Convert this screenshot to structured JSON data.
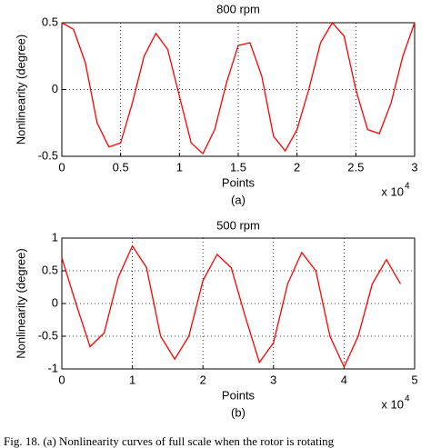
{
  "chart_data": [
    {
      "type": "line",
      "title": "800 rpm",
      "xlabel": "Points",
      "ylabel": "Nonlinearity (degree)",
      "sublabel": "(a)",
      "x_multiplier": {
        "base": "x 10",
        "exponent": "4"
      },
      "x": [
        0,
        0.1,
        0.2,
        0.3,
        0.4,
        0.5,
        0.6,
        0.7,
        0.8,
        0.9,
        1.0,
        1.1,
        1.2,
        1.3,
        1.4,
        1.5,
        1.6,
        1.7,
        1.8,
        1.9,
        2.0,
        2.1,
        2.2,
        2.3,
        2.4,
        2.5,
        2.6,
        2.7,
        2.8,
        2.9,
        3.0
      ],
      "series": [
        {
          "name": "800 rpm",
          "color": "#ff0000",
          "values": [
            0.5,
            0.45,
            0.2,
            -0.25,
            -0.43,
            -0.4,
            -0.1,
            0.25,
            0.42,
            0.3,
            -0.05,
            -0.4,
            -0.48,
            -0.3,
            0.05,
            0.33,
            0.35,
            0.1,
            -0.35,
            -0.46,
            -0.3,
            0.0,
            0.35,
            0.5,
            0.4,
            0.0,
            -0.3,
            -0.33,
            -0.1,
            0.25,
            0.5
          ]
        }
      ],
      "xlim": [
        0,
        3
      ],
      "xticks": [
        0,
        0.5,
        1,
        1.5,
        2,
        2.5,
        3
      ],
      "ylim": [
        -0.5,
        0.5
      ],
      "yticks": [
        -0.5,
        0,
        0.5
      ],
      "grid": true
    },
    {
      "type": "line",
      "title": "500 rpm",
      "xlabel": "Points",
      "ylabel": "Nonlinearity (degree)",
      "sublabel": "(b)",
      "x_multiplier": {
        "base": "x 10",
        "exponent": "4"
      },
      "x": [
        0,
        0.2,
        0.4,
        0.6,
        0.8,
        1.0,
        1.2,
        1.4,
        1.6,
        1.8,
        2.0,
        2.2,
        2.4,
        2.6,
        2.8,
        3.0,
        3.2,
        3.4,
        3.6,
        3.8,
        4.0,
        4.2,
        4.4,
        4.6,
        4.8
      ],
      "series": [
        {
          "name": "500 rpm",
          "color": "#ff0000",
          "values": [
            0.7,
            0.0,
            -0.66,
            -0.45,
            0.4,
            0.88,
            0.55,
            -0.5,
            -0.85,
            -0.5,
            0.35,
            0.75,
            0.55,
            -0.2,
            -0.9,
            -0.6,
            0.3,
            0.78,
            0.5,
            -0.5,
            -0.97,
            -0.5,
            0.3,
            0.67,
            0.3
          ]
        }
      ],
      "xlim": [
        0,
        5
      ],
      "xticks": [
        0,
        1,
        2,
        3,
        4,
        5
      ],
      "ylim": [
        -1,
        1
      ],
      "yticks": [
        -1,
        -0.5,
        0,
        0.5,
        1
      ],
      "grid": true
    }
  ],
  "caption": "Fig. 18.    (a) Nonlinearity curves of full scale when the rotor is rotating"
}
